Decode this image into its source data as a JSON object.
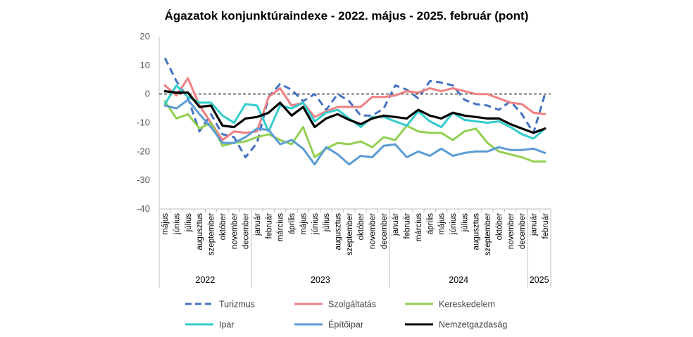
{
  "chart_data": {
    "type": "line",
    "title": "Ágazatok konjunktúraindexe - 2022. május - 2025. február (pont)",
    "xlabel": "",
    "ylabel": "",
    "ylim": [
      -40,
      20
    ],
    "yticks": [
      20,
      10,
      0,
      -10,
      -20,
      -30,
      -40
    ],
    "categories": [
      "május",
      "június",
      "július",
      "augusztus",
      "szeptember",
      "október",
      "november",
      "december",
      "január",
      "február",
      "március",
      "április",
      "május",
      "június",
      "július",
      "augusztus",
      "szeptember",
      "október",
      "november",
      "december",
      "január",
      "február",
      "március",
      "április",
      "május",
      "június",
      "július",
      "augusztus",
      "szeptember",
      "október",
      "november",
      "december",
      "január",
      "február"
    ],
    "year_groups": [
      {
        "label": "2022",
        "start": 0,
        "end": 7
      },
      {
        "label": "2023",
        "start": 8,
        "end": 19
      },
      {
        "label": "2024",
        "start": 20,
        "end": 31
      },
      {
        "label": "2025",
        "start": 32,
        "end": 33
      }
    ],
    "zero_line": true,
    "legend_position": "bottom",
    "series": [
      {
        "name": "Turizmus",
        "color": "#4472C4",
        "dash": true,
        "values": [
          12.5,
          4.5,
          -1.5,
          -13,
          -7,
          -14,
          -15,
          -22,
          -17,
          -1,
          3.5,
          1.5,
          -2.5,
          0,
          -5.5,
          0,
          -2.5,
          -7.5,
          -7.5,
          -5,
          3,
          1.5,
          -1.5,
          4.5,
          4,
          3,
          -2,
          -3.5,
          -4,
          -5.5,
          -2.5,
          -7,
          -13.5,
          0
        ]
      },
      {
        "name": "Szolgáltatás",
        "color": "#F08080",
        "dash": false,
        "values": [
          3,
          -0.5,
          5.5,
          -4,
          -10,
          -16,
          -13,
          -13.5,
          -13,
          -1,
          2,
          -4,
          -3,
          -8,
          -6,
          -4.5,
          -4.5,
          -4.5,
          -1,
          -1,
          -0.5,
          1,
          0.5,
          2,
          1,
          2,
          1,
          0,
          0,
          -1.5,
          -3,
          -3.5,
          -6.5,
          -7
        ]
      },
      {
        "name": "Kereskedelem",
        "color": "#92D050",
        "dash": false,
        "values": [
          -2.5,
          -8.5,
          -7,
          -12,
          -10,
          -18,
          -17,
          -16.5,
          -15,
          -14,
          -16,
          -17.5,
          -11.5,
          -22,
          -19,
          -17,
          -17.5,
          -16.5,
          -18.5,
          -15,
          -16,
          -11,
          -13,
          -13.5,
          -13.5,
          -16,
          -13,
          -12,
          -17,
          -20,
          -21,
          -22,
          -23.5,
          -23.5
        ]
      },
      {
        "name": "Ipar",
        "color": "#33CCCC",
        "dash": false,
        "values": [
          -3.5,
          3,
          -1,
          -3,
          -3,
          -7.5,
          -10,
          -3.5,
          -4,
          -13,
          -4,
          -5,
          -3,
          -9.5,
          -6.5,
          -5.5,
          -8.5,
          -11.5,
          -8,
          -8,
          -9.5,
          -11,
          -6,
          -9.5,
          -11.5,
          -6.5,
          -9,
          -9.5,
          -10,
          -9.5,
          -11.5,
          -14,
          -15.5,
          -12
        ]
      },
      {
        "name": "Építőipar",
        "color": "#5B9BD5",
        "dash": false,
        "values": [
          -4,
          -5,
          -2,
          -7,
          -11.5,
          -17,
          -17,
          -15,
          -12,
          -12.5,
          -17.5,
          -16,
          -19,
          -24.5,
          -18.5,
          -21,
          -24.5,
          -21.5,
          -22,
          -18,
          -17.5,
          -22,
          -20,
          -21.5,
          -19,
          -21.5,
          -20.5,
          -20,
          -20,
          -18.5,
          -19.5,
          -19.5,
          -19,
          -20.5
        ]
      },
      {
        "name": "Nemzetgazdaság",
        "color": "#000000",
        "dash": false,
        "values": [
          1,
          0.5,
          0.5,
          -4.5,
          -4,
          -11,
          -11.5,
          -8.5,
          -8,
          -6.5,
          -3,
          -7.5,
          -4.5,
          -11.5,
          -8.5,
          -7,
          -9,
          -10.5,
          -8.5,
          -7.5,
          -8,
          -8.5,
          -5.5,
          -7.5,
          -8.5,
          -6.5,
          -7.5,
          -8,
          -8.5,
          -8.5,
          -10.5,
          -12,
          -13.5,
          -12
        ]
      }
    ]
  }
}
